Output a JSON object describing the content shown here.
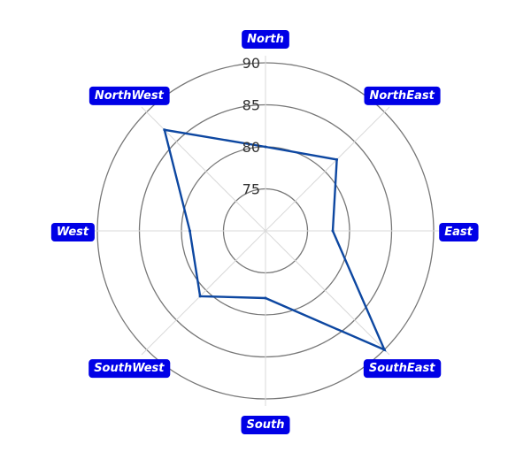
{
  "chart_data": {
    "type": "radar",
    "title": "",
    "categories": [
      "North",
      "NorthEast",
      "East",
      "SouthEast",
      "South",
      "SouthWest",
      "West",
      "NorthWest"
    ],
    "series": [
      {
        "values": [
          80,
          82,
          78,
          90,
          78,
          81,
          79,
          87
        ],
        "color": "#0d47a1"
      }
    ],
    "r_ticks": [
      75,
      80,
      85,
      90
    ],
    "r_range": [
      70,
      90
    ],
    "grid": true,
    "label_bg_color": "#0000e6",
    "grid_circle_color": "#777777",
    "spoke_color": "#d9d9d9"
  }
}
